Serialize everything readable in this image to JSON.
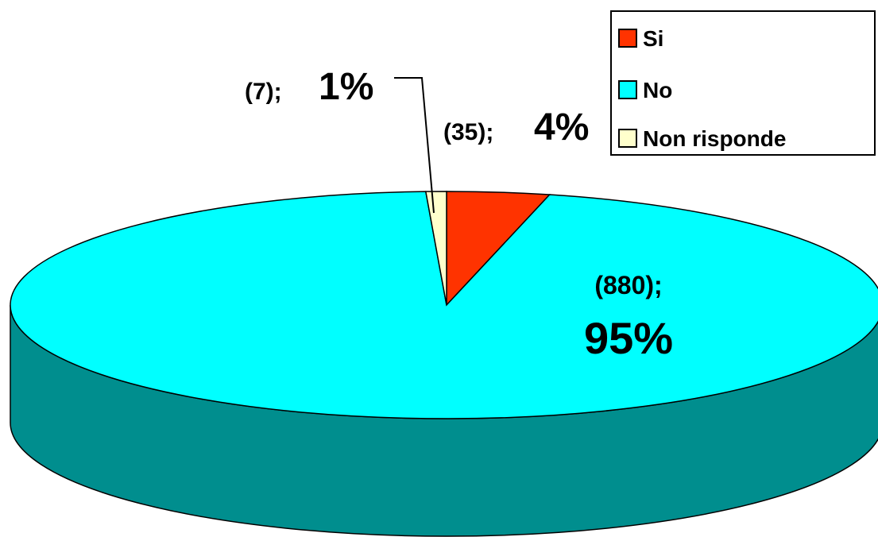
{
  "chart_data": {
    "type": "pie",
    "style": "3d",
    "title": "",
    "slices": [
      {
        "label": "Si",
        "count": 35,
        "percent": 4,
        "count_text": "(35);",
        "percent_text": "4%",
        "color": "#ff3300",
        "side_color": "#b32400"
      },
      {
        "label": "No",
        "count": 880,
        "percent": 95,
        "count_text": "(880);",
        "percent_text": "95%",
        "color": "#00ffff",
        "side_color": "#008e8e"
      },
      {
        "label": "Non risponde",
        "count": 7,
        "percent": 1,
        "count_text": "(7);",
        "percent_text": "1%",
        "color": "#ffffcc",
        "side_color": "#bdbd97"
      }
    ],
    "legend": {
      "position": "top-right",
      "items": [
        "Si",
        "No",
        "Non risponde"
      ]
    }
  }
}
